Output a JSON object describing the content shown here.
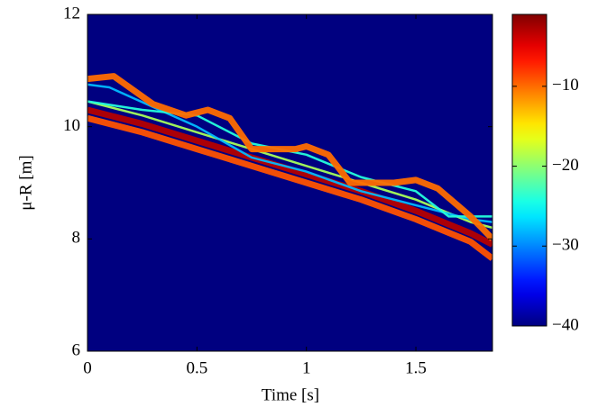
{
  "chart_data": {
    "type": "heatmap",
    "colormap": "jet",
    "xlabel": "Time [s]",
    "ylabel": "μ-R [m]",
    "xlim": [
      0,
      1.85
    ],
    "ylim": [
      6,
      12
    ],
    "xticks": [
      0,
      0.5,
      1,
      1.5
    ],
    "yticks": [
      6,
      8,
      10,
      12
    ],
    "clim": [
      -40,
      -1
    ],
    "cticks": [
      {
        "value": -40,
        "label": "−40"
      },
      {
        "value": -30,
        "label": "−30"
      },
      {
        "value": -20,
        "label": "−20"
      },
      {
        "value": -10,
        "label": "−10"
      }
    ],
    "background": -40,
    "traces": [
      {
        "x": [
          0,
          0.25,
          0.5,
          0.75,
          1,
          1.25,
          1.5,
          1.75,
          1.85
        ],
        "y": [
          10.45,
          10.2,
          9.9,
          9.6,
          9.3,
          9.0,
          8.7,
          8.3,
          8.2
        ],
        "value": -19
      },
      {
        "x": [
          0,
          0.25,
          0.5,
          0.75,
          1,
          1.25,
          1.5,
          1.75,
          1.85
        ],
        "y": [
          10.15,
          9.9,
          9.6,
          9.3,
          9.0,
          8.7,
          8.35,
          7.95,
          7.65
        ],
        "value": -9
      },
      {
        "x": [
          0,
          0.25,
          0.5,
          0.75,
          1,
          1.25,
          1.5,
          1.75,
          1.85
        ],
        "y": [
          10.3,
          10.05,
          9.75,
          9.45,
          9.15,
          8.85,
          8.5,
          8.1,
          7.9
        ],
        "value": -3
      },
      {
        "x": [
          0,
          0.1,
          0.3,
          0.5,
          0.75,
          1.0,
          1.25,
          1.5,
          1.75,
          1.85
        ],
        "y": [
          10.75,
          10.7,
          10.35,
          10.0,
          9.45,
          9.2,
          8.85,
          8.6,
          8.35,
          8.3
        ],
        "value": -28
      },
      {
        "x": [
          0,
          0.25,
          0.5,
          0.75,
          1.0,
          1.25,
          1.5,
          1.65,
          1.85
        ],
        "y": [
          10.45,
          10.3,
          10.2,
          9.7,
          9.5,
          9.1,
          8.85,
          8.4,
          8.4
        ],
        "value": -24
      },
      {
        "x": [
          0,
          0.12,
          0.3,
          0.45,
          0.55,
          0.65,
          0.75,
          0.95,
          1.0,
          1.1,
          1.2,
          1.4,
          1.5,
          1.6,
          1.75,
          1.85
        ],
        "y": [
          10.85,
          10.9,
          10.4,
          10.2,
          10.3,
          10.15,
          9.6,
          9.6,
          9.65,
          9.5,
          9.0,
          9.0,
          9.05,
          8.9,
          8.4,
          8.0
        ],
        "value": -10
      }
    ]
  }
}
